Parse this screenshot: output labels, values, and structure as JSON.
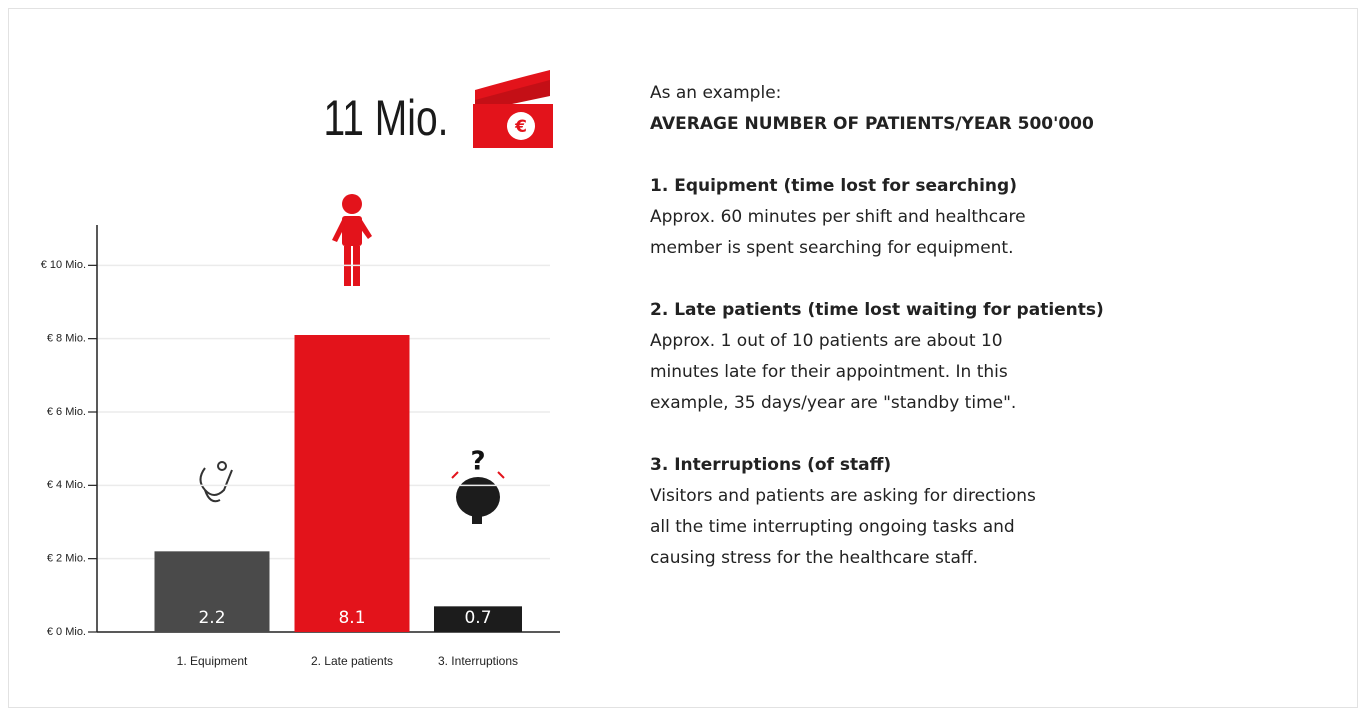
{
  "headline": "11 Mio.",
  "headline_icon": "€",
  "chart_data": {
    "type": "bar",
    "categories": [
      "1. Equipment",
      "2. Late patients",
      "3. Interruptions"
    ],
    "values": [
      2.2,
      8.1,
      0.7
    ],
    "colors": [
      "#4a4a4a",
      "#e3131b",
      "#1c1c1c"
    ],
    "ylim": [
      0,
      11.1
    ],
    "yticks": [
      {
        "value": 0,
        "label": "€ 0 Mio."
      },
      {
        "value": 2,
        "label": "€ 2 Mio."
      },
      {
        "value": 4,
        "label": "€ 4 Mio."
      },
      {
        "value": 6,
        "label": "€ 6 Mio."
      },
      {
        "value": 8,
        "label": "€ 8 Mio."
      },
      {
        "value": 10,
        "label": "€ 10 Mio."
      }
    ],
    "grid": true
  },
  "text": {
    "intro": "As an example:",
    "subtitle": "AVERAGE NUMBER OF PATIENTS/YEAR 500'000",
    "sections": [
      {
        "heading": "1. Equipment (time lost for searching)",
        "lines": [
          "Approx. 60 minutes per shift and healthcare",
          "member is spent searching for equipment."
        ]
      },
      {
        "heading": "2. Late patients (time lost waiting for patients)",
        "lines": [
          "Approx. 1 out of 10 patients are about 10",
          "minutes late for their appointment. In this",
          "example, 35 days/year are \"standby time\"."
        ]
      },
      {
        "heading": "3. Interruptions (of staff)",
        "lines": [
          "Visitors and patients are asking for directions",
          "all the time interrupting ongoing tasks and",
          "causing stress for the healthcare staff."
        ]
      }
    ]
  }
}
